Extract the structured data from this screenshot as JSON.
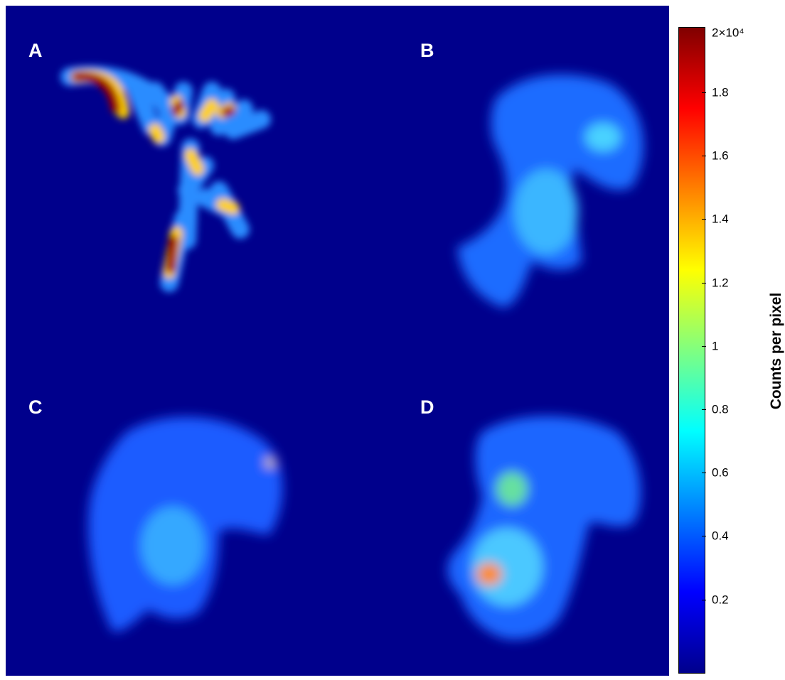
{
  "panels": {
    "a": {
      "label": "A"
    },
    "b": {
      "label": "B"
    },
    "c": {
      "label": "C"
    },
    "d": {
      "label": "D"
    }
  },
  "colorbar": {
    "title": "Counts per pixel",
    "max_label": "2×10⁴",
    "ticks": [
      "1.8",
      "1.6",
      "1.4",
      "1.2",
      "1",
      "0.8",
      "0.6",
      "0.4",
      "0.2"
    ],
    "colormap": [
      "#00008c",
      "#0000ff",
      "#0080ff",
      "#00ffff",
      "#80ff80",
      "#ffff00",
      "#ff8000",
      "#ff0000",
      "#800000"
    ]
  }
}
